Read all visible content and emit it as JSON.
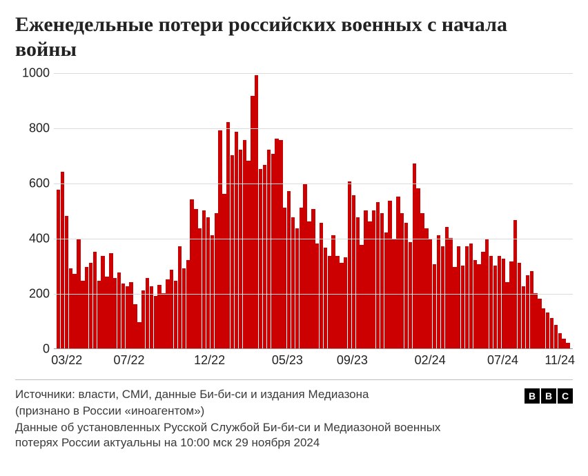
{
  "title": "Еженедельные потери российских военных с начала войны",
  "chart": {
    "type": "bar",
    "bar_color": "#cc0000",
    "background_color": "#ffffff",
    "grid_color": "#dcdcdc",
    "axis_color": "#999999",
    "y": {
      "min": 0,
      "max": 1000,
      "ticks": [
        0,
        200,
        400,
        600,
        800,
        1000
      ],
      "label_fontsize": 18,
      "label_color": "#222222"
    },
    "x": {
      "ticks": [
        {
          "pos": 0.025,
          "label": "03/22"
        },
        {
          "pos": 0.145,
          "label": "07/22"
        },
        {
          "pos": 0.3,
          "label": "12/22"
        },
        {
          "pos": 0.45,
          "label": "05/23"
        },
        {
          "pos": 0.575,
          "label": "09/23"
        },
        {
          "pos": 0.725,
          "label": "02/24"
        },
        {
          "pos": 0.865,
          "label": "07/24"
        },
        {
          "pos": 0.975,
          "label": "11/24"
        }
      ],
      "label_fontsize": 18,
      "label_color": "#222222"
    },
    "values": [
      575,
      640,
      480,
      290,
      270,
      395,
      245,
      295,
      310,
      350,
      245,
      335,
      260,
      345,
      255,
      275,
      235,
      225,
      240,
      160,
      95,
      210,
      255,
      225,
      190,
      230,
      200,
      250,
      285,
      245,
      370,
      290,
      320,
      540,
      505,
      435,
      500,
      475,
      410,
      490,
      790,
      560,
      820,
      700,
      785,
      720,
      755,
      680,
      915,
      990,
      650,
      665,
      720,
      705,
      760,
      755,
      510,
      570,
      475,
      435,
      510,
      595,
      460,
      505,
      380,
      455,
      365,
      335,
      410,
      335,
      310,
      330,
      605,
      555,
      475,
      375,
      500,
      460,
      500,
      530,
      490,
      420,
      535,
      395,
      550,
      490,
      455,
      385,
      670,
      580,
      490,
      435,
      395,
      305,
      410,
      370,
      440,
      400,
      295,
      370,
      300,
      370,
      380,
      320,
      305,
      350,
      395,
      335,
      300,
      335,
      325,
      240,
      315,
      465,
      310,
      225,
      265,
      280,
      200,
      180,
      145,
      130,
      110,
      85,
      55,
      35,
      20
    ]
  },
  "footer": {
    "source_line1": "Источники: власти, СМИ, данные Би-би-си и издания Медиазона",
    "source_line2": "(признано в России «иноагентом»)",
    "note": "Данные об установленных Русской Службой Би-би-си и Медиазоной военных потерях России актуальны на 10:00 мск 29 ноября 2024",
    "logo_letters": [
      "B",
      "B",
      "C"
    ]
  },
  "typography": {
    "title_fontsize": 30,
    "title_fontweight": "bold",
    "title_fontfamily": "serif",
    "footnote_fontsize": 17,
    "footnote_fontfamily": "sans-serif"
  }
}
